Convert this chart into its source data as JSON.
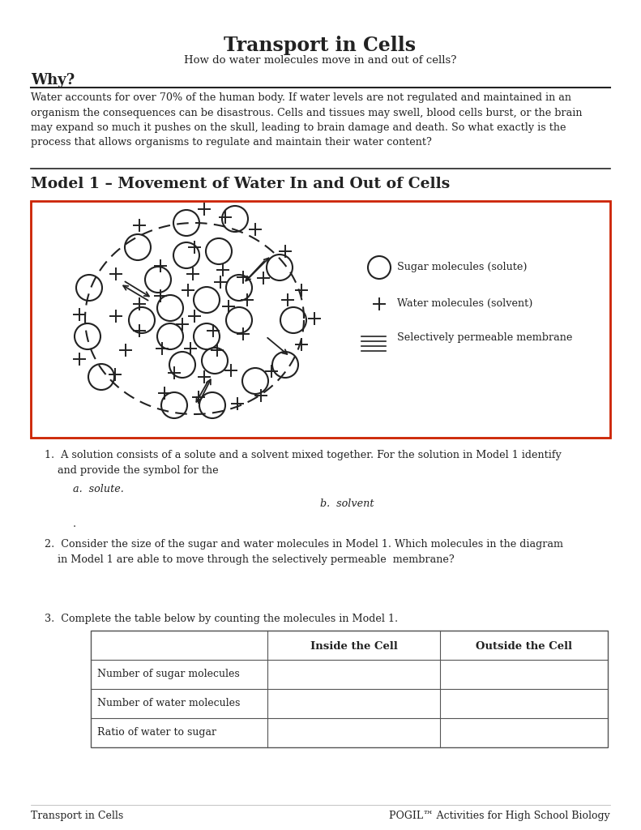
{
  "title": "Transport in Cells",
  "subtitle": "How do water molecules move in and out of cells?",
  "why_heading": "Why?",
  "why_text": "Water accounts for over 70% of the human body. If water levels are not regulated and maintained in an\norganism the consequences can be disastrous. Cells and tissues may swell, blood cells burst, or the brain\nmay expand so much it pushes on the skull, leading to brain damage and death. So what exactly is the\nprocess that allows organisms to regulate and maintain their water content?",
  "model_heading": "Model 1 – Movement of Water In and Out of Cells",
  "q1_text": "1.  A solution consists of a solute and a solvent mixed together. For the solution in Model 1 identify\n    and provide the symbol for the",
  "q1a": "a.  solute.",
  "q1b": "b.  solvent",
  "q1_dot": ".",
  "q2_text": "2.  Consider the size of the sugar and water molecules in Model 1. Which molecules in the diagram\n    in Model 1 are able to move through the selectively permeable  membrane?",
  "q3_text": "3.  Complete the table below by counting the molecules in Model 1.",
  "table_header1": "Inside the Cell",
  "table_header2": "Outside the Cell",
  "table_rows": [
    "Number of sugar molecules",
    "Number of water molecules",
    "Ratio of water to sugar"
  ],
  "footer_left": "Transport in Cells",
  "footer_right": "POGIL™ Activities for High School Biology",
  "legend_sugar": "Sugar molecules (solute)",
  "legend_water": "Water molecules (solvent)",
  "legend_membrane": "Selectively permeable membrane",
  "bg_color": "#ffffff",
  "text_color": "#222222",
  "red_border": "#cc2200"
}
